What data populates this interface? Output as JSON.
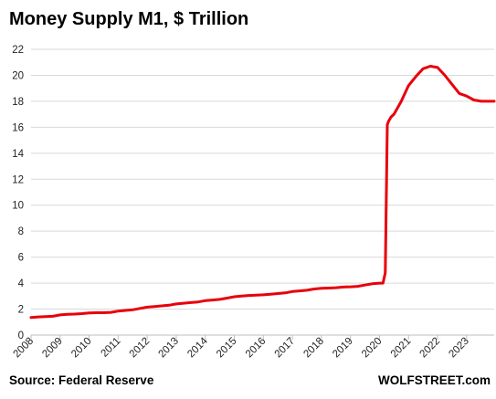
{
  "chart_data": {
    "type": "line",
    "title": "Money Supply M1, $ Trillion",
    "xlabel": "",
    "ylabel": "",
    "xlim": [
      2008,
      2023.95
    ],
    "ylim": [
      0,
      22
    ],
    "yticks": [
      0,
      2,
      4,
      6,
      8,
      10,
      12,
      14,
      16,
      18,
      20,
      22
    ],
    "xticks": [
      "2008",
      "2009",
      "2010",
      "2011",
      "2012",
      "2013",
      "2014",
      "2015",
      "2016",
      "2017",
      "2018",
      "2019",
      "2020",
      "2021",
      "2022",
      "2023"
    ],
    "grid": "horizontal",
    "legend": "none",
    "series": [
      {
        "color": "#e8000b",
        "x": [
          2008.0,
          2008.25,
          2008.5,
          2008.75,
          2009.0,
          2009.25,
          2009.5,
          2009.75,
          2010.0,
          2010.25,
          2010.5,
          2010.75,
          2011.0,
          2011.25,
          2011.5,
          2011.75,
          2012.0,
          2012.25,
          2012.5,
          2012.75,
          2013.0,
          2013.25,
          2013.5,
          2013.75,
          2014.0,
          2014.25,
          2014.5,
          2014.75,
          2015.0,
          2015.25,
          2015.5,
          2015.75,
          2016.0,
          2016.25,
          2016.5,
          2016.75,
          2017.0,
          2017.25,
          2017.5,
          2017.75,
          2018.0,
          2018.25,
          2018.5,
          2018.75,
          2019.0,
          2019.25,
          2019.5,
          2019.75,
          2020.0,
          2020.12,
          2020.2,
          2020.27,
          2020.32,
          2020.4,
          2020.5,
          2020.75,
          2021.0,
          2021.25,
          2021.5,
          2021.75,
          2022.0,
          2022.25,
          2022.5,
          2022.75,
          2023.0,
          2023.25,
          2023.5,
          2023.75,
          2023.95
        ],
        "y": [
          1.35,
          1.4,
          1.42,
          1.45,
          1.55,
          1.6,
          1.62,
          1.65,
          1.7,
          1.72,
          1.72,
          1.75,
          1.85,
          1.9,
          1.95,
          2.05,
          2.15,
          2.2,
          2.25,
          2.3,
          2.4,
          2.45,
          2.5,
          2.55,
          2.65,
          2.7,
          2.75,
          2.85,
          2.95,
          3.0,
          3.05,
          3.08,
          3.1,
          3.15,
          3.2,
          3.25,
          3.35,
          3.4,
          3.45,
          3.55,
          3.6,
          3.62,
          3.65,
          3.7,
          3.72,
          3.75,
          3.85,
          3.95,
          4.0,
          4.0,
          4.8,
          16.2,
          16.5,
          16.8,
          17.0,
          18.0,
          19.2,
          19.9,
          20.5,
          20.7,
          20.6,
          20.0,
          19.3,
          18.6,
          18.4,
          18.1,
          18.0,
          18.0,
          18.0
        ]
      }
    ]
  },
  "footer": {
    "source": "Source: Federal Reserve",
    "brand": "WOLFSTREET.com"
  }
}
